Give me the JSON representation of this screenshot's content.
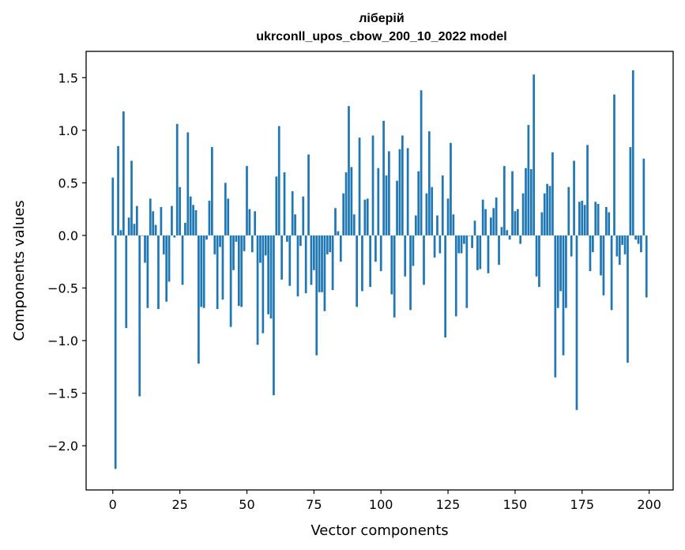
{
  "chart_data": {
    "type": "bar",
    "title": "ліберій",
    "subtitle": "ukrconll_upos_cbow_200_10_2022 model",
    "xlabel": "Vector components",
    "ylabel": "Components values",
    "xlim": [
      -9.95,
      208.95
    ],
    "ylim": [
      -2.42,
      1.75
    ],
    "xticks": [
      0,
      25,
      50,
      75,
      100,
      125,
      150,
      175,
      200
    ],
    "yticks": [
      -2.0,
      -1.5,
      -1.0,
      -0.5,
      0.0,
      0.5,
      1.0,
      1.5
    ],
    "ytick_labels": [
      "−2.0",
      "−1.5",
      "−1.0",
      "−0.5",
      "0.0",
      "0.5",
      "1.0",
      "1.5"
    ],
    "bar_color": "#1f77b4",
    "grid": false,
    "legend": "none",
    "values": [
      0.55,
      -2.22,
      0.85,
      0.05,
      1.18,
      -0.88,
      0.17,
      0.71,
      0.11,
      0.28,
      -1.53,
      0.0,
      -0.26,
      -0.69,
      0.35,
      0.23,
      0.1,
      -0.7,
      0.27,
      -0.18,
      -0.63,
      -0.44,
      0.28,
      -0.02,
      1.06,
      0.46,
      -0.47,
      0.12,
      0.98,
      0.37,
      0.29,
      0.24,
      -1.22,
      -0.68,
      -0.69,
      -0.04,
      0.33,
      0.84,
      -0.18,
      -0.7,
      -0.11,
      -0.61,
      0.5,
      0.35,
      -0.87,
      -0.33,
      -0.06,
      -0.67,
      -0.68,
      -0.15,
      0.66,
      0.25,
      -0.16,
      0.23,
      -1.04,
      -0.26,
      -0.93,
      -0.19,
      -0.75,
      -0.79,
      -1.52,
      0.56,
      1.04,
      -0.42,
      0.6,
      -0.06,
      -0.48,
      0.42,
      0.2,
      -0.58,
      -0.1,
      0.37,
      -0.55,
      0.77,
      -0.47,
      -0.33,
      -1.14,
      -0.54,
      -0.54,
      -0.72,
      -0.18,
      -0.16,
      -0.52,
      0.26,
      0.04,
      -0.25,
      0.4,
      0.6,
      1.23,
      0.65,
      0.2,
      -0.68,
      0.93,
      -0.53,
      0.34,
      0.35,
      -0.49,
      0.95,
      -0.25,
      0.64,
      -0.34,
      1.09,
      0.57,
      0.8,
      -0.56,
      -0.78,
      0.52,
      0.82,
      0.95,
      -0.39,
      0.83,
      -0.71,
      -0.29,
      0.19,
      0.61,
      1.38,
      -0.47,
      0.4,
      0.99,
      0.46,
      -0.21,
      0.19,
      -0.17,
      0.57,
      -0.97,
      0.35,
      0.88,
      0.2,
      -0.77,
      -0.17,
      -0.17,
      -0.08,
      -0.69,
      0.0,
      -0.12,
      0.14,
      -0.33,
      -0.32,
      0.34,
      0.25,
      -0.36,
      0.17,
      0.26,
      0.36,
      -0.28,
      0.08,
      0.66,
      0.05,
      -0.04,
      0.61,
      0.23,
      0.25,
      -0.08,
      0.4,
      0.64,
      1.05,
      0.63,
      1.53,
      -0.39,
      -0.49,
      0.22,
      0.4,
      0.49,
      0.47,
      0.79,
      -1.35,
      -0.69,
      -0.53,
      -1.14,
      -0.69,
      0.46,
      -0.2,
      0.71,
      -1.66,
      0.32,
      0.33,
      0.29,
      0.86,
      -0.34,
      -0.16,
      0.32,
      0.3,
      -0.38,
      -0.57,
      0.27,
      0.22,
      -0.71,
      1.34,
      -0.2,
      -0.28,
      -0.09,
      -0.18,
      -1.21,
      0.84,
      1.57,
      -0.04,
      -0.08,
      -0.16,
      0.73,
      -0.59
    ]
  }
}
